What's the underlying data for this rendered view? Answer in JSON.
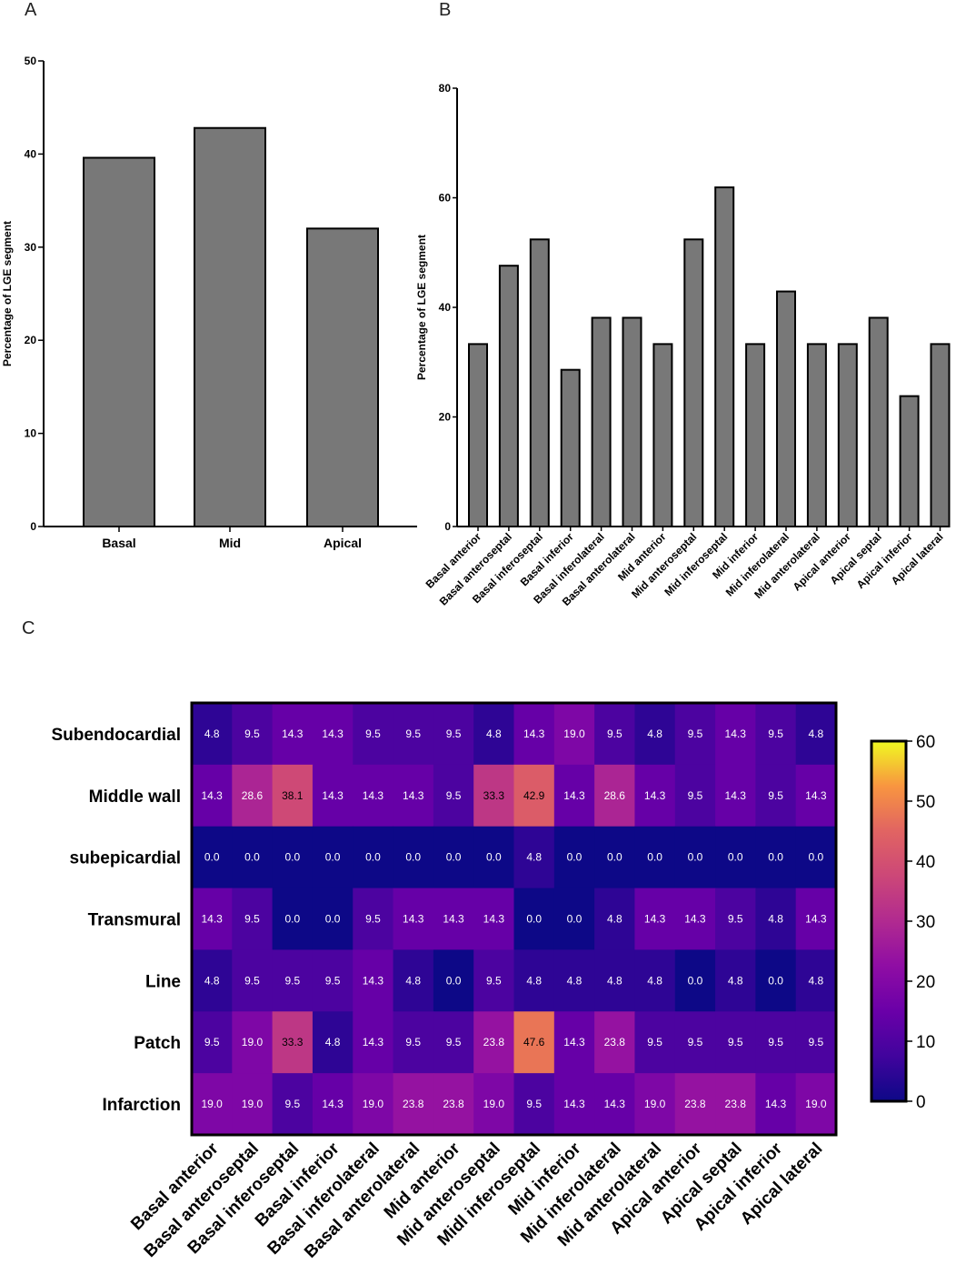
{
  "panels": {
    "a": "A",
    "b": "B",
    "c": "C"
  },
  "chart_data": [
    {
      "type": "bar",
      "panel": "A",
      "categories": [
        "Basal",
        "Mid",
        "Apical"
      ],
      "values": [
        39.6,
        42.8,
        32.0
      ],
      "ylabel": "Percentage of LGE segment",
      "xlabel": "",
      "ylim": [
        0,
        50
      ],
      "yticks": [
        "0",
        "10",
        "20",
        "30",
        "40",
        "50"
      ],
      "grid": false
    },
    {
      "type": "bar",
      "panel": "B",
      "categories": [
        "Basal anterior",
        "Basal anteroseptal",
        "Basal inferoseptal",
        "Basal inferior",
        "Basal inferolateral",
        "Basal anterolateral",
        "Mid anterior",
        "Mid anteroseptal",
        "Mid inferoseptal",
        "Mid inferior",
        "Mid inferolateral",
        "Mid anterolateral",
        "Apical anterior",
        "Apical septal",
        "Apical inferior",
        "Apical lateral"
      ],
      "values": [
        33.3,
        47.6,
        52.4,
        28.6,
        38.1,
        38.1,
        33.3,
        52.4,
        61.9,
        33.3,
        42.9,
        33.3,
        33.3,
        38.1,
        23.8,
        33.3
      ],
      "ylabel": "Percentage of LGE segment",
      "xlabel": "",
      "ylim": [
        0,
        80
      ],
      "yticks": [
        "0",
        "20",
        "40",
        "60",
        "80"
      ],
      "grid": false
    },
    {
      "type": "heatmap",
      "panel": "C",
      "rows": [
        "Subendocardial",
        "Middle wall",
        "subepicardial",
        "Transmural",
        "Line",
        "Patch",
        "Infarction"
      ],
      "columns": [
        "Basal anterior",
        "Basal anteroseptal",
        "Basal inferoseptal",
        "Basal inferior",
        "Basal inferolateral",
        "Basal anterolateral",
        "Mid anterior",
        "Mid anteroseptal",
        "Midl inferoseptal",
        "Mid inferior",
        "Mid inferolateral",
        "Mid anterolateral",
        "Apical anterior",
        "Apical septal",
        "Apical inferior",
        "Apical lateral"
      ],
      "values": [
        [
          4.8,
          9.5,
          14.3,
          14.3,
          9.5,
          9.5,
          9.5,
          4.8,
          14.3,
          19.0,
          9.5,
          4.8,
          9.5,
          14.3,
          9.5,
          4.8
        ],
        [
          14.3,
          28.6,
          38.1,
          14.3,
          14.3,
          14.3,
          9.5,
          33.3,
          42.9,
          14.3,
          28.6,
          14.3,
          9.5,
          14.3,
          9.5,
          14.3
        ],
        [
          0.0,
          0.0,
          0.0,
          0.0,
          0.0,
          0.0,
          0.0,
          0.0,
          4.8,
          0.0,
          0.0,
          0.0,
          0.0,
          0.0,
          0.0,
          0.0
        ],
        [
          14.3,
          9.5,
          0.0,
          0.0,
          9.5,
          14.3,
          14.3,
          14.3,
          0.0,
          0.0,
          4.8,
          14.3,
          14.3,
          9.5,
          4.8,
          14.3
        ],
        [
          4.8,
          9.5,
          9.5,
          9.5,
          14.3,
          4.8,
          0.0,
          9.5,
          4.8,
          4.8,
          4.8,
          4.8,
          0.0,
          4.8,
          0.0,
          4.8
        ],
        [
          9.5,
          19.0,
          33.3,
          4.8,
          14.3,
          9.5,
          9.5,
          23.8,
          47.6,
          14.3,
          23.8,
          9.5,
          9.5,
          9.5,
          9.5,
          9.5
        ],
        [
          19.0,
          19.0,
          9.5,
          14.3,
          19.0,
          23.8,
          23.8,
          19.0,
          9.5,
          14.3,
          14.3,
          19.0,
          23.8,
          23.8,
          14.3,
          19.0
        ]
      ],
      "colorbar": {
        "range": [
          0,
          60
        ],
        "ticks": [
          "0",
          "10",
          "20",
          "30",
          "40",
          "50",
          "60"
        ],
        "colormap": "plasma"
      }
    }
  ]
}
